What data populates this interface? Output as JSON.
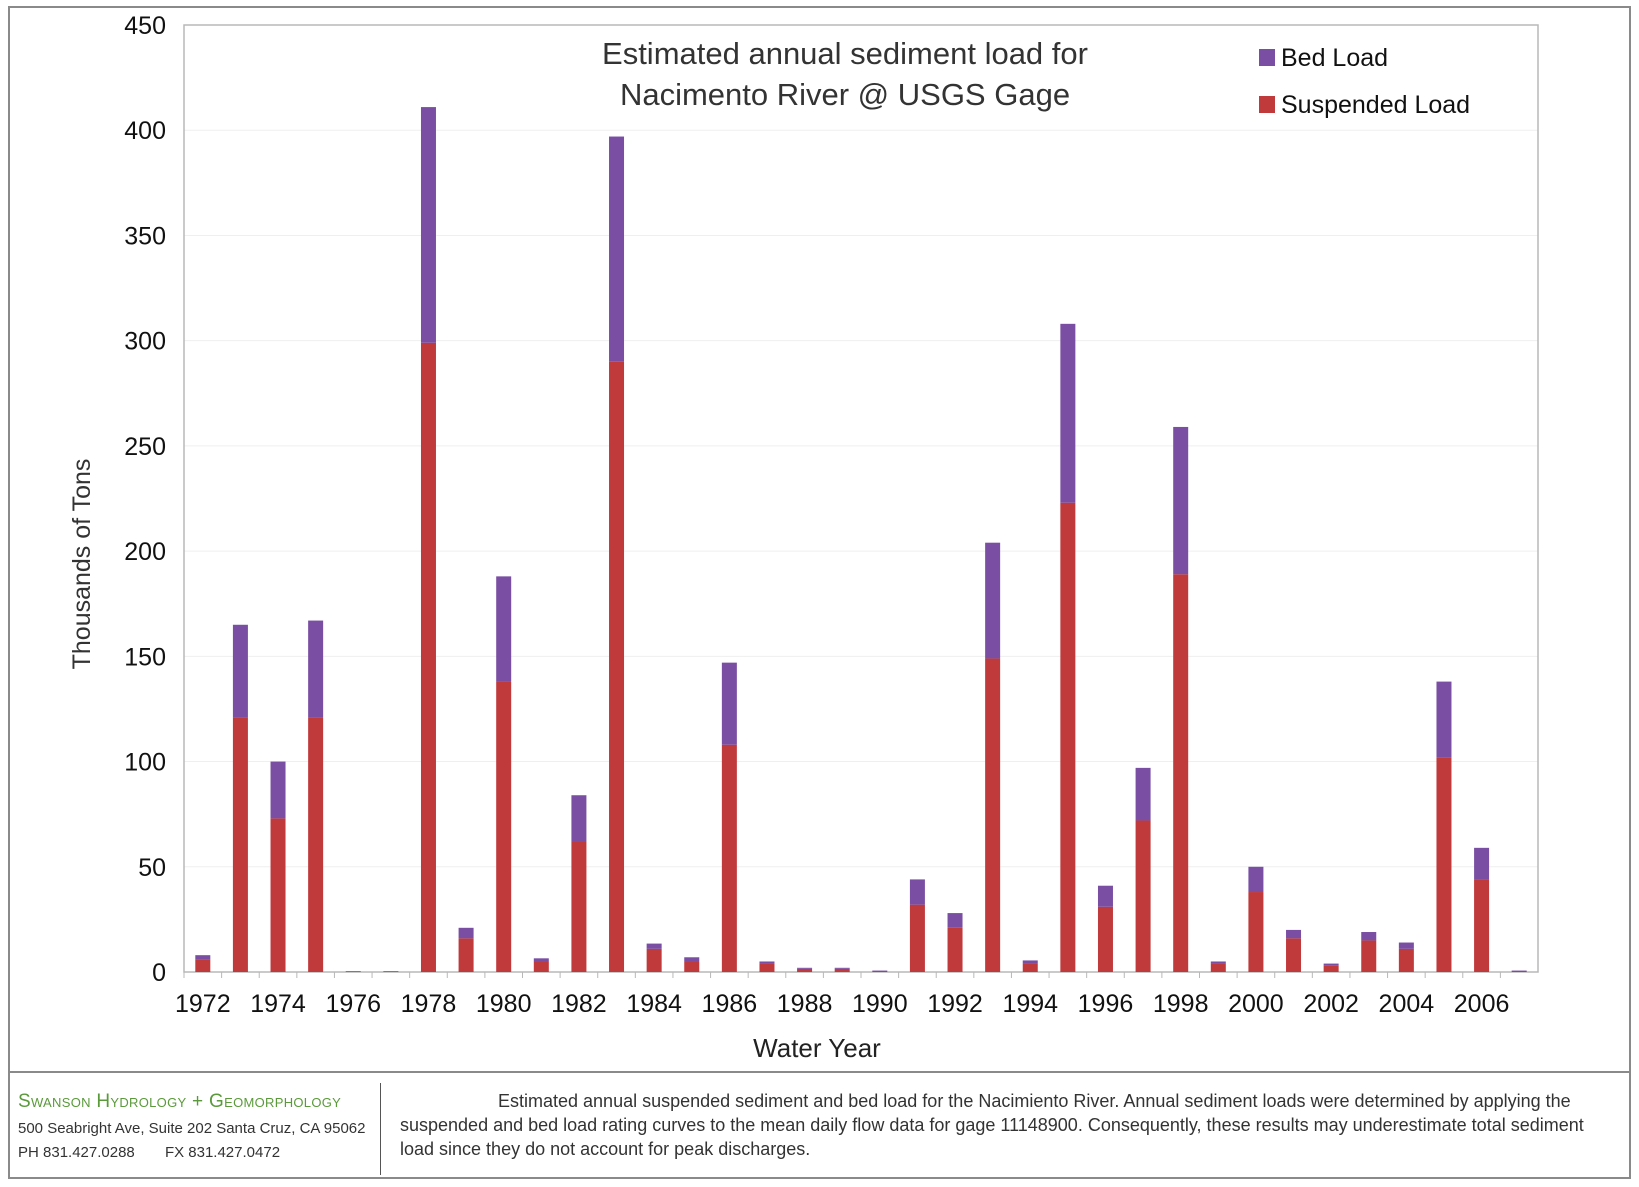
{
  "chart_data": {
    "type": "bar",
    "stacked": true,
    "title": [
      "Estimated annual sediment load for",
      "Nacimento River @ USGS Gage"
    ],
    "xlabel": "Water Year",
    "ylabel": "Thousands of Tons",
    "ylim": [
      0,
      450
    ],
    "yticks": [
      0,
      50,
      100,
      150,
      200,
      250,
      300,
      350,
      400,
      450
    ],
    "x": [
      1972,
      1973,
      1974,
      1975,
      1976,
      1977,
      1978,
      1979,
      1980,
      1981,
      1982,
      1983,
      1984,
      1985,
      1986,
      1987,
      1988,
      1989,
      1990,
      1991,
      1992,
      1993,
      1994,
      1995,
      1996,
      1997,
      1998,
      1999,
      2000,
      2001,
      2002,
      2003,
      2004,
      2005,
      2006,
      2007
    ],
    "xtick_labels": [
      "1972",
      "1974",
      "1976",
      "1978",
      "1980",
      "1982",
      "1984",
      "1986",
      "1988",
      "1990",
      "1992",
      "1994",
      "1996",
      "1998",
      "2000",
      "2002",
      "2004",
      "2006"
    ],
    "legend_position": "top-right",
    "grid": true,
    "series": [
      {
        "name": "Suspended Load",
        "color": "#c0393b",
        "values": [
          6,
          121,
          73,
          121,
          0.3,
          0.3,
          299,
          16,
          138,
          5,
          62,
          290,
          11,
          5,
          108,
          4,
          1.5,
          1.5,
          0.5,
          32,
          21,
          149,
          4,
          223,
          31,
          72,
          189,
          4,
          38,
          16,
          3,
          15,
          11,
          102,
          44,
          0.5
        ]
      },
      {
        "name": "Bed Load",
        "color": "#7a4fa3",
        "values": [
          2,
          44,
          27,
          46,
          0.1,
          0.1,
          112,
          5,
          50,
          1.5,
          22,
          107,
          2.5,
          2,
          39,
          1,
          0.5,
          0.5,
          0.2,
          12,
          7,
          55,
          1.5,
          85,
          10,
          25,
          70,
          1,
          12,
          4,
          1,
          4,
          3,
          36,
          15,
          0.2
        ]
      }
    ]
  },
  "footer": {
    "company_name": "Swanson Hydrology + Geomorphology",
    "address": "500 Seabright Ave, Suite 202 Santa Cruz, CA 95062",
    "phone": "PH  831.427.0288",
    "fax": "FX  831.427.0472",
    "caption": "Estimated annual suspended sediment and bed load for the Nacimiento River.  Annual sediment loads were determined by applying the suspended and bed load rating curves to the mean daily flow data for gage 11148900.  Consequently, these results may underestimate total sediment load since they do not account for peak discharges."
  }
}
